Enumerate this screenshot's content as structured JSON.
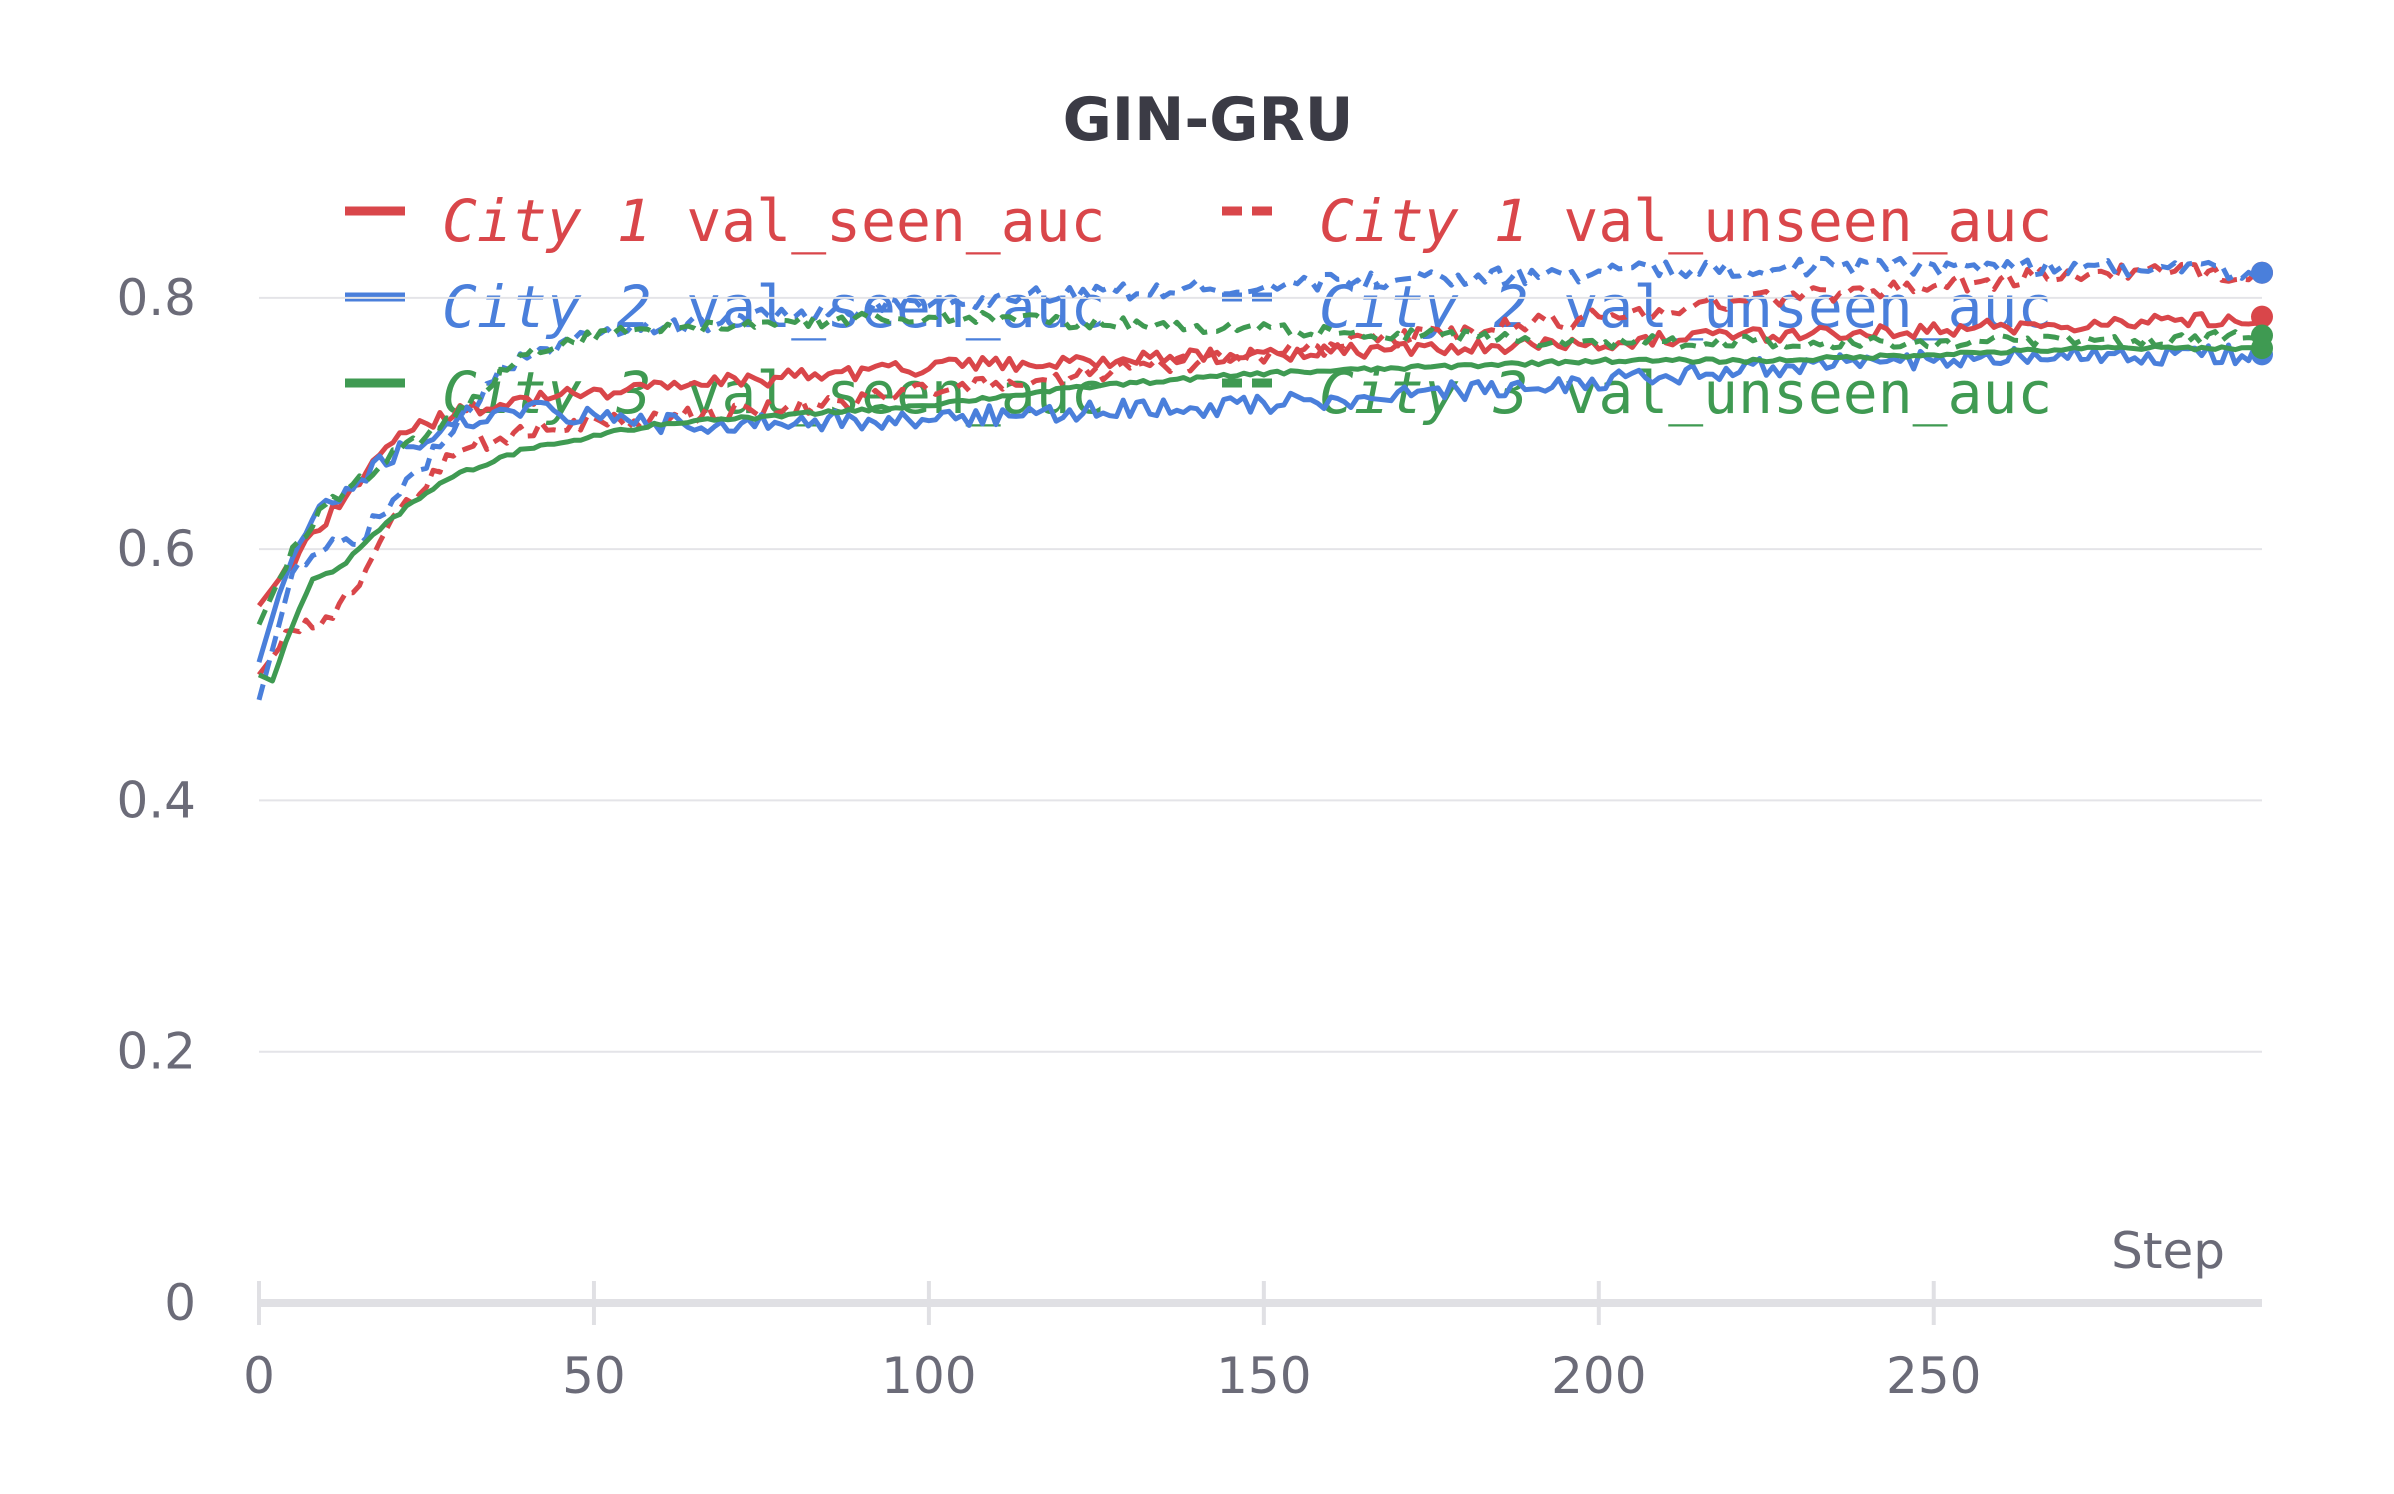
{
  "chart_data": {
    "type": "line",
    "title": "GIN-GRU",
    "xlabel": "Step",
    "ylabel": "",
    "xlim": [
      0,
      299
    ],
    "ylim": [
      0,
      0.85
    ],
    "xticks": [
      0,
      50,
      100,
      150,
      200,
      250
    ],
    "yticks": [
      0,
      0.2,
      0.4,
      0.6,
      0.8
    ],
    "xtick_labels": [
      "0",
      "50",
      "100",
      "150",
      "200",
      "250"
    ],
    "ytick_labels": [
      "0",
      "0.2",
      "0.4",
      "0.6",
      "0.8"
    ],
    "grid": true,
    "legend_position": "top",
    "series": [
      {
        "city": "City 1",
        "metric": "val_seen_auc",
        "color": "#d9464a",
        "dash": false,
        "noise": 0.006,
        "x": [
          0,
          5,
          10,
          15,
          20,
          25,
          30,
          40,
          50,
          60,
          75,
          100,
          125,
          150,
          175,
          200,
          225,
          250,
          275,
          299
        ],
        "y": [
          0.555,
          0.59,
          0.625,
          0.655,
          0.685,
          0.7,
          0.71,
          0.72,
          0.725,
          0.73,
          0.735,
          0.745,
          0.75,
          0.755,
          0.76,
          0.765,
          0.77,
          0.775,
          0.78,
          0.785
        ]
      },
      {
        "city": "City 1",
        "metric": "val_unseen_auc",
        "color": "#d9464a",
        "dash": true,
        "noise": 0.007,
        "x": [
          0,
          5,
          10,
          15,
          20,
          25,
          30,
          40,
          50,
          60,
          75,
          100,
          125,
          150,
          175,
          200,
          225,
          250,
          275,
          299
        ],
        "y": [
          0.5,
          0.535,
          0.545,
          0.575,
          0.62,
          0.655,
          0.68,
          0.695,
          0.7,
          0.705,
          0.71,
          0.725,
          0.74,
          0.755,
          0.77,
          0.785,
          0.8,
          0.81,
          0.82,
          0.82
        ]
      },
      {
        "city": "City 2",
        "metric": "val_seen_auc",
        "color": "#4a7fdb",
        "dash": false,
        "noise": 0.008,
        "x": [
          0,
          5,
          10,
          15,
          20,
          25,
          30,
          40,
          50,
          60,
          75,
          100,
          125,
          150,
          175,
          200,
          225,
          250,
          275,
          299
        ],
        "y": [
          0.51,
          0.6,
          0.635,
          0.655,
          0.675,
          0.69,
          0.7,
          0.71,
          0.705,
          0.7,
          0.7,
          0.705,
          0.71,
          0.715,
          0.725,
          0.735,
          0.745,
          0.75,
          0.755,
          0.755
        ]
      },
      {
        "city": "City 2",
        "metric": "val_unseen_auc",
        "color": "#4a7fdb",
        "dash": true,
        "noise": 0.007,
        "x": [
          0,
          5,
          10,
          15,
          20,
          25,
          30,
          35,
          40,
          50,
          60,
          75,
          100,
          125,
          150,
          175,
          200,
          225,
          250,
          275,
          299
        ],
        "y": [
          0.48,
          0.58,
          0.6,
          0.61,
          0.635,
          0.67,
          0.7,
          0.735,
          0.755,
          0.77,
          0.775,
          0.785,
          0.795,
          0.805,
          0.81,
          0.815,
          0.82,
          0.825,
          0.825,
          0.825,
          0.82
        ]
      },
      {
        "city": "City 3",
        "metric": "val_seen_auc",
        "color": "#3f9a52",
        "dash": false,
        "noise": 0.0015,
        "x": [
          0,
          2,
          5,
          8,
          12,
          15,
          20,
          25,
          30,
          40,
          50,
          60,
          75,
          100,
          125,
          150,
          175,
          200,
          225,
          250,
          275,
          299
        ],
        "y": [
          0.5,
          0.495,
          0.54,
          0.575,
          0.585,
          0.6,
          0.625,
          0.645,
          0.66,
          0.68,
          0.69,
          0.7,
          0.705,
          0.715,
          0.73,
          0.74,
          0.745,
          0.75,
          0.75,
          0.755,
          0.76,
          0.76
        ]
      },
      {
        "city": "City 3",
        "metric": "val_unseen_auc",
        "color": "#3f9a52",
        "dash": true,
        "noise": 0.005,
        "x": [
          0,
          5,
          10,
          15,
          20,
          25,
          30,
          35,
          40,
          50,
          60,
          75,
          100,
          125,
          150,
          175,
          200,
          225,
          250,
          275,
          299
        ],
        "y": [
          0.54,
          0.6,
          0.635,
          0.655,
          0.675,
          0.69,
          0.71,
          0.735,
          0.755,
          0.77,
          0.775,
          0.78,
          0.785,
          0.78,
          0.775,
          0.77,
          0.765,
          0.765,
          0.765,
          0.765,
          0.77
        ]
      }
    ]
  }
}
